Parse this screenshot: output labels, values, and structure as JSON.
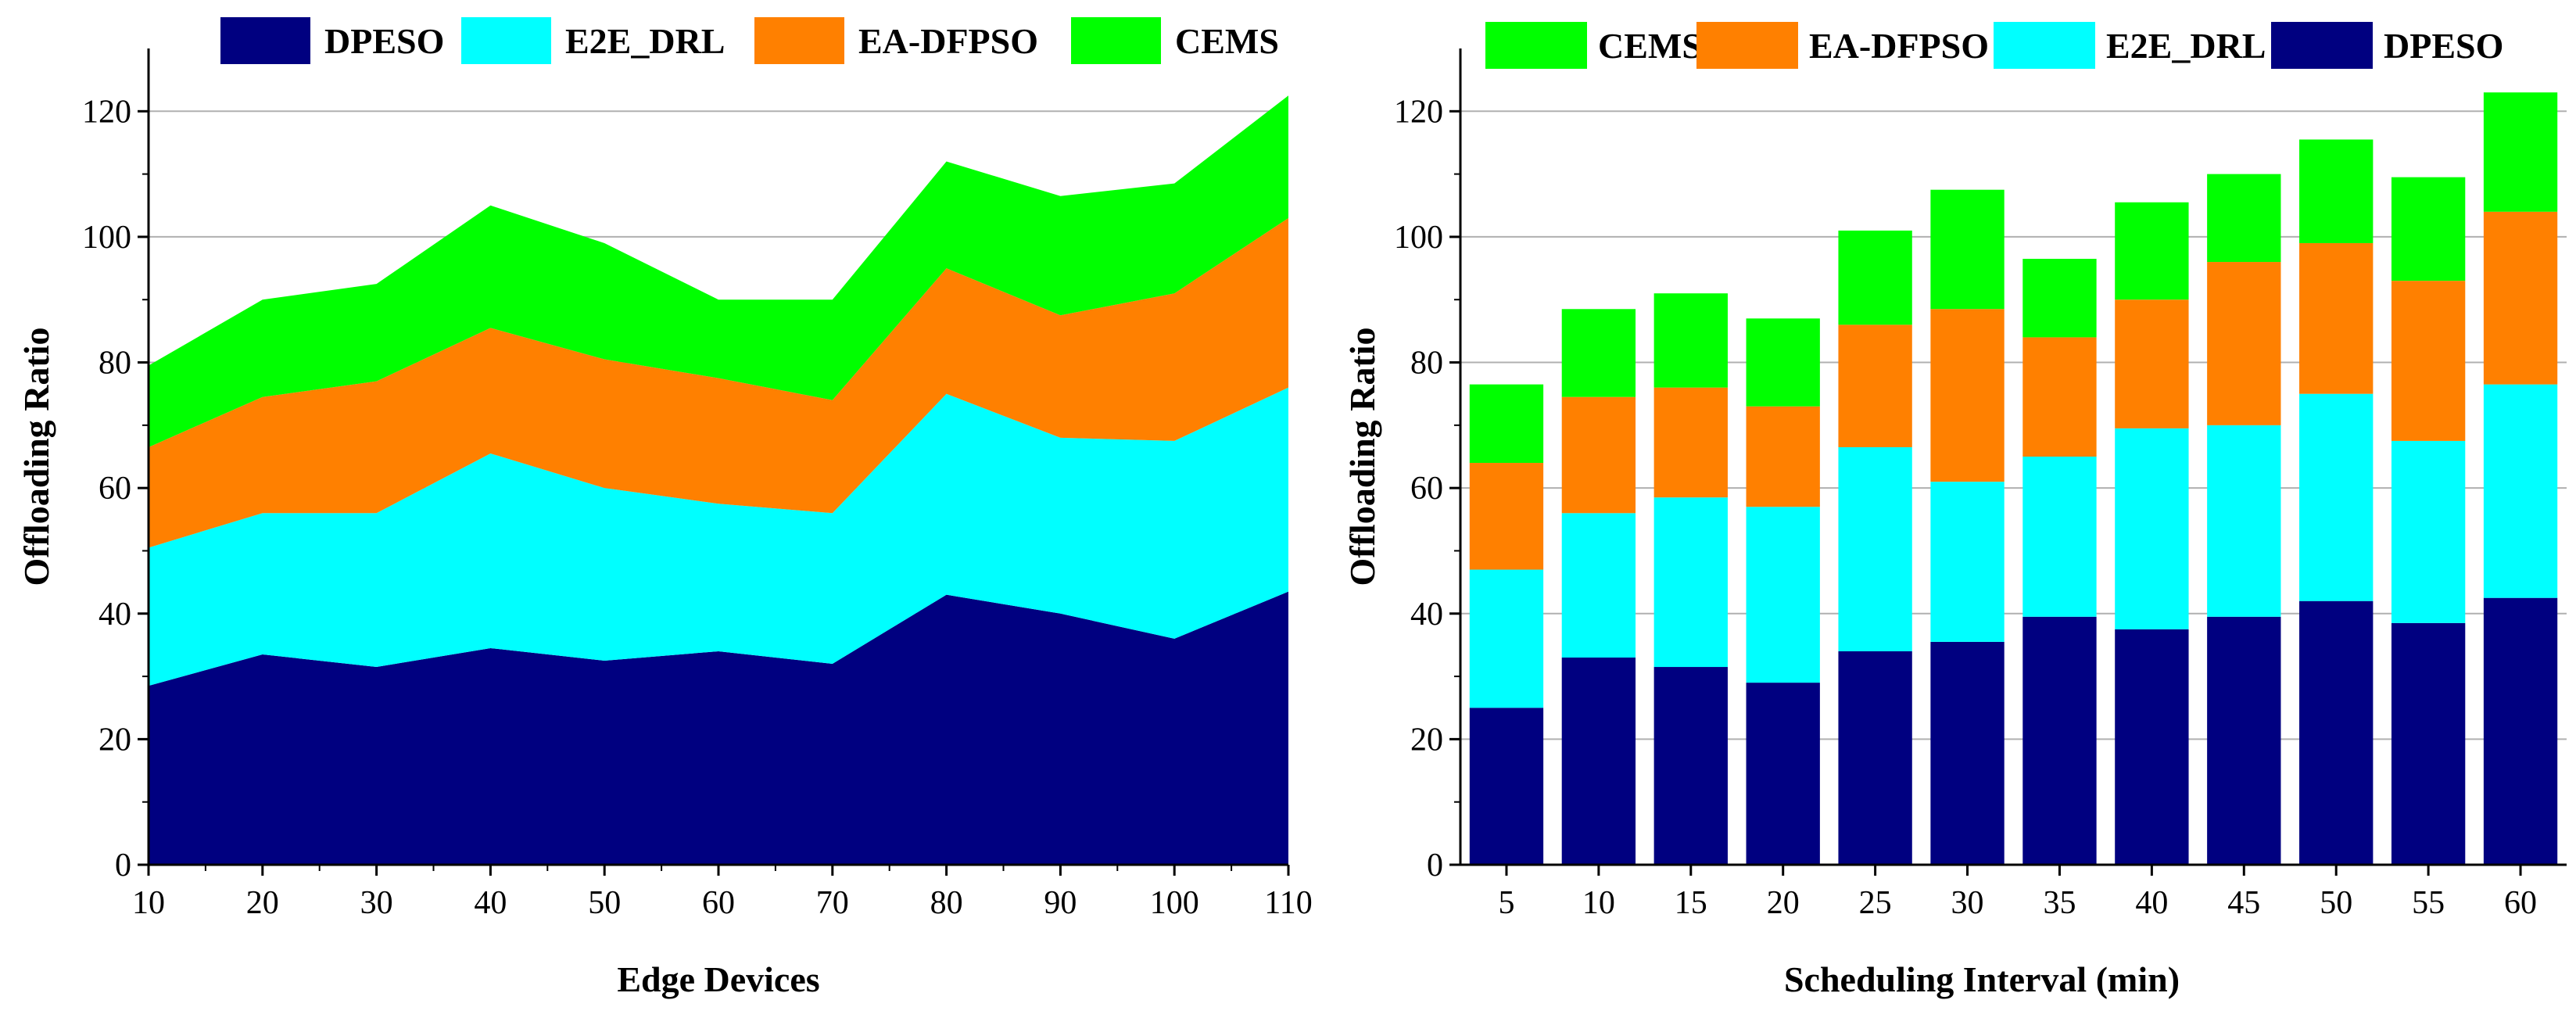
{
  "chart_data": [
    {
      "type": "area",
      "stacked": true,
      "xlabel": "Edge Devices",
      "ylabel": "Offloading Ratio",
      "xlim": [
        10,
        110
      ],
      "ylim": [
        0,
        130
      ],
      "x": [
        10,
        20,
        30,
        40,
        50,
        60,
        70,
        80,
        90,
        100,
        110
      ],
      "x_ticks": [
        "10",
        "20",
        "30",
        "40",
        "50",
        "60",
        "70",
        "80",
        "90",
        "100",
        "110"
      ],
      "y_ticks": [
        "0",
        "20",
        "40",
        "60",
        "80",
        "100",
        "120"
      ],
      "gridlines": "horizontal",
      "legend": "top",
      "series": [
        {
          "name": "DPESO",
          "color": "#000080",
          "values": [
            28.5,
            33.5,
            31.5,
            34.5,
            32.5,
            34,
            32,
            43,
            40,
            36,
            43.5
          ]
        },
        {
          "name": "E2E_DRL",
          "color": "#00FFFF",
          "values": [
            22,
            22.5,
            24.5,
            31,
            27.5,
            23.5,
            24,
            32,
            28,
            31.5,
            32.5
          ]
        },
        {
          "name": "EA-DFPSO",
          "color": "#FF8000",
          "values": [
            16,
            18.5,
            21,
            20,
            20.5,
            20,
            18,
            20,
            19.5,
            23.5,
            27
          ]
        },
        {
          "name": "CEMS",
          "color": "#00FF00",
          "values": [
            13,
            15.5,
            15.5,
            19.5,
            18.5,
            12.5,
            16,
            17,
            19,
            17.5,
            19.5
          ]
        }
      ]
    },
    {
      "type": "bar",
      "stacked": true,
      "xlabel": "Scheduling Interval (min)",
      "ylabel": "Offloading Ratio",
      "ylim": [
        0,
        130
      ],
      "categories": [
        "5",
        "10",
        "15",
        "20",
        "25",
        "30",
        "35",
        "40",
        "45",
        "50",
        "55",
        "60"
      ],
      "y_ticks": [
        "0",
        "20",
        "40",
        "60",
        "80",
        "100",
        "120"
      ],
      "gridlines": "horizontal",
      "legend": "top",
      "legend_order": [
        "CEMS",
        "EA-DFPSO",
        "E2E_DRL",
        "DPESO"
      ],
      "series": [
        {
          "name": "DPESO",
          "color": "#000080",
          "values": [
            25,
            33,
            31.5,
            29,
            34,
            35.5,
            39.5,
            37.5,
            39.5,
            42,
            38.5,
            42.5
          ]
        },
        {
          "name": "E2E_DRL",
          "color": "#00FFFF",
          "values": [
            22,
            23,
            27,
            28,
            32.5,
            25.5,
            25.5,
            32,
            30.5,
            33,
            29,
            34
          ]
        },
        {
          "name": "EA-DFPSO",
          "color": "#FF8000",
          "values": [
            17,
            18.5,
            17.5,
            16,
            19.5,
            27.5,
            19,
            20.5,
            26,
            24,
            25.5,
            27.5
          ]
        },
        {
          "name": "CEMS",
          "color": "#00FF00",
          "values": [
            12.5,
            14,
            15,
            14,
            15,
            19,
            12.5,
            15.5,
            14,
            16.5,
            16.5,
            19
          ]
        }
      ]
    }
  ]
}
